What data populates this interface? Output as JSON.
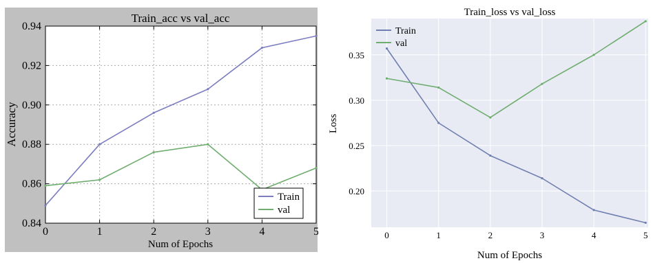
{
  "chart_data": [
    {
      "type": "line",
      "title": "Train_acc vs val_acc",
      "xlabel": "Num of Epochs",
      "ylabel": "Accuracy",
      "x": [
        0,
        1,
        2,
        3,
        4,
        5
      ],
      "xlim": [
        0,
        5
      ],
      "ylim": [
        0.84,
        0.94
      ],
      "xticks": [
        "0",
        "1",
        "2",
        "3",
        "4",
        "5"
      ],
      "yticks": [
        "0.84",
        "0.86",
        "0.88",
        "0.90",
        "0.92",
        "0.94"
      ],
      "grid": true,
      "legend_position": "bottom-right",
      "background_color": "#c0c0c0",
      "series": [
        {
          "name": "Train",
          "color": "#7c7cc0",
          "values": [
            0.849,
            0.88,
            0.896,
            0.908,
            0.929,
            0.935
          ]
        },
        {
          "name": "val",
          "color": "#6fad6f",
          "values": [
            0.859,
            0.862,
            0.876,
            0.88,
            0.857,
            0.868
          ]
        }
      ]
    },
    {
      "type": "line",
      "title": "Train_loss vs val_loss",
      "xlabel": "Num of Epochs",
      "ylabel": "Loss",
      "x": [
        0,
        1,
        2,
        3,
        4,
        5
      ],
      "xlim": [
        -0.3,
        5.05
      ],
      "ylim": [
        0.16,
        0.39
      ],
      "xticks": [
        "0",
        "1",
        "2",
        "3",
        "4",
        "5"
      ],
      "yticks": [
        "0.20",
        "0.25",
        "0.30",
        "0.35"
      ],
      "grid": true,
      "legend_position": "top-left",
      "background_color": "#e9ebf4",
      "series": [
        {
          "name": "Train",
          "color": "#6f7faf",
          "values": [
            0.357,
            0.275,
            0.239,
            0.214,
            0.179,
            0.165
          ]
        },
        {
          "name": "val",
          "color": "#6fad6f",
          "values": [
            0.324,
            0.314,
            0.281,
            0.318,
            0.35,
            0.387
          ]
        }
      ]
    }
  ]
}
